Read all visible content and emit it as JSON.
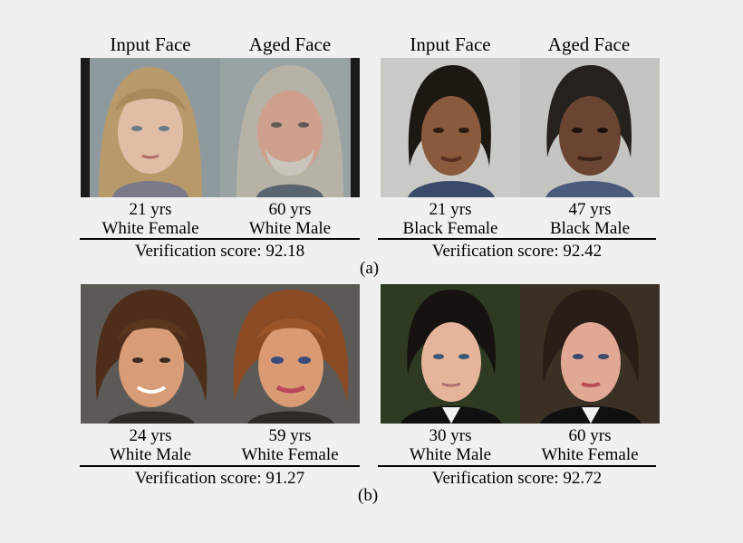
{
  "headers": {
    "input": "Input Face",
    "aged": "Aged Face"
  },
  "row_a": {
    "label": "(a)",
    "pairs": [
      {
        "input": {
          "age": "21 yrs",
          "demo": "White Female"
        },
        "output": {
          "age": "60 yrs",
          "demo": "White Male"
        },
        "score": "Verification score: 92.18"
      },
      {
        "input": {
          "age": "21 yrs",
          "demo": "Black Female"
        },
        "output": {
          "age": "47 yrs",
          "demo": "Black Male"
        },
        "score": "Verification score: 92.42"
      }
    ]
  },
  "row_b": {
    "label": "(b)",
    "pairs": [
      {
        "input": {
          "age": "24 yrs",
          "demo": "White Male"
        },
        "output": {
          "age": "59 yrs",
          "demo": "White Female"
        },
        "score": "Verification score: 91.27"
      },
      {
        "input": {
          "age": "30 yrs",
          "demo": "White Male"
        },
        "output": {
          "age": "60 yrs",
          "demo": "White Female"
        },
        "score": "Verification score: 92.72"
      }
    ]
  }
}
